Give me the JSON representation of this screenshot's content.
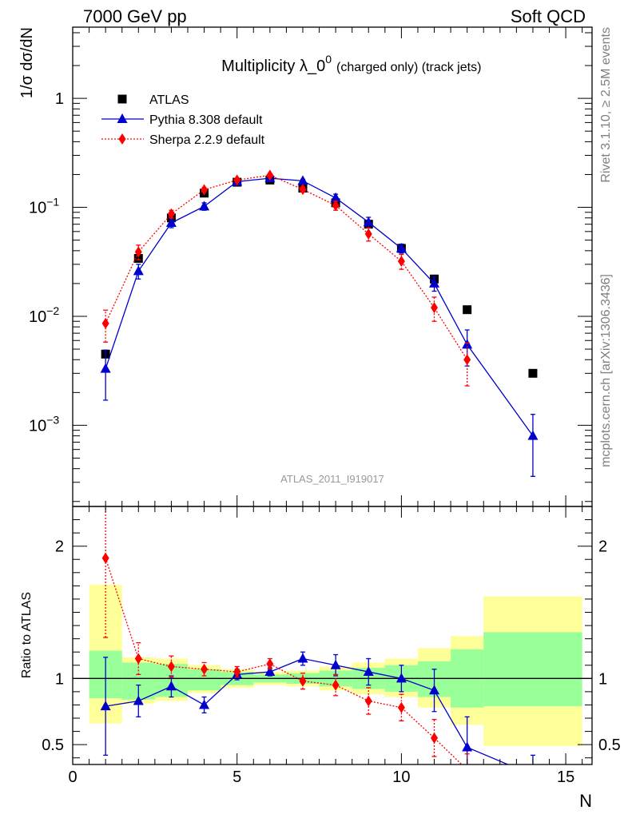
{
  "header": {
    "left": "7000 GeV pp",
    "right": "Soft QCD"
  },
  "side_labels": {
    "rivet": "Rivet 3.1.10, ≥ 2.5M events",
    "mcplots": "mcplots.cern.ch [arXiv:1306.3436]"
  },
  "chart_data": [
    {
      "type": "scatter",
      "title_main": "Multiplicity λ_0",
      "title_sup": "0",
      "title_suffix": "(charged only) (track jets)",
      "ylabel": "1/σ dσ/dN",
      "yscale": "log",
      "ylim": [
        0.00018,
        4.5
      ],
      "xlim": [
        0,
        15.8
      ],
      "analysis_tag": "ATLAS_2011_I919017",
      "legend_position": "top-left",
      "y_ticks": [
        {
          "value": 1,
          "base": "1",
          "exp": ""
        },
        {
          "value": 0.1,
          "base": "10",
          "exp": "−1"
        },
        {
          "value": 0.01,
          "base": "10",
          "exp": "−2"
        },
        {
          "value": 0.001,
          "base": "10",
          "exp": "−3"
        }
      ],
      "series": [
        {
          "name": "ATLAS",
          "style": "data",
          "color": "#000000",
          "x": [
            1,
            2,
            3,
            4,
            5,
            6,
            7,
            8,
            9,
            10,
            11,
            12,
            14
          ],
          "y": [
            0.0045,
            0.034,
            0.08,
            0.135,
            0.17,
            0.178,
            0.15,
            0.11,
            0.07,
            0.042,
            0.022,
            0.0115,
            0.003
          ]
        },
        {
          "name": "Pythia 8.308 default",
          "style": "solid",
          "marker": "triangle",
          "color": "#0000cc",
          "x": [
            1,
            2,
            3,
            4,
            5,
            6,
            7,
            8,
            9,
            10,
            11,
            12,
            14
          ],
          "y": [
            0.0033,
            0.026,
            0.072,
            0.102,
            0.172,
            0.185,
            0.175,
            0.122,
            0.073,
            0.042,
            0.02,
            0.0055,
            0.0008
          ],
          "err": [
            0.0016,
            0.004,
            0.007,
            0.008,
            0.006,
            0.005,
            0.006,
            0.01,
            0.008,
            0.004,
            0.003,
            0.002,
            0.00046
          ]
        },
        {
          "name": "Sherpa 2.2.9 default",
          "style": "dotted",
          "marker": "diamond",
          "color": "#ff0000",
          "x": [
            1,
            2,
            3,
            4,
            5,
            6,
            7,
            8,
            9,
            10,
            11,
            12
          ],
          "y": [
            0.0086,
            0.039,
            0.087,
            0.145,
            0.178,
            0.197,
            0.146,
            0.104,
            0.057,
            0.032,
            0.012,
            0.004
          ],
          "err": [
            0.0028,
            0.006,
            0.007,
            0.006,
            0.005,
            0.006,
            0.008,
            0.01,
            0.008,
            0.005,
            0.003,
            0.0017
          ]
        }
      ]
    },
    {
      "type": "scatter",
      "ylabel": "Ratio to ATLAS",
      "xlabel": "N",
      "ylim": [
        0.35,
        2.3
      ],
      "xlim": [
        0,
        15.8
      ],
      "y_ticks": [
        {
          "value": 0.5,
          "label": "0.5"
        },
        {
          "value": 1,
          "label": "1"
        },
        {
          "value": 2,
          "label": "2"
        }
      ],
      "x_ticks": [
        {
          "value": 0,
          "label": "0"
        },
        {
          "value": 5,
          "label": "5"
        },
        {
          "value": 10,
          "label": "10"
        },
        {
          "value": 15,
          "label": "15"
        }
      ],
      "uncertainty_bands": [
        {
          "x0": 0.5,
          "x1": 1.5,
          "yellow": [
            0.66,
            1.71
          ],
          "green": [
            0.85,
            1.21
          ]
        },
        {
          "x0": 1.5,
          "x1": 2.5,
          "yellow": [
            0.81,
            1.16
          ],
          "green": [
            0.84,
            1.12
          ]
        },
        {
          "x0": 2.5,
          "x1": 3.5,
          "yellow": [
            0.83,
            1.15
          ],
          "green": [
            0.86,
            1.11
          ]
        },
        {
          "x0": 3.5,
          "x1": 4.5,
          "yellow": [
            0.89,
            1.1
          ],
          "green": [
            0.91,
            1.07
          ]
        },
        {
          "x0": 4.5,
          "x1": 5.5,
          "yellow": [
            0.93,
            1.07
          ],
          "green": [
            0.95,
            1.05
          ]
        },
        {
          "x0": 5.5,
          "x1": 6.5,
          "yellow": [
            0.95,
            1.05
          ],
          "green": [
            0.97,
            1.03
          ]
        },
        {
          "x0": 6.5,
          "x1": 7.5,
          "yellow": [
            0.94,
            1.06
          ],
          "green": [
            0.96,
            1.04
          ]
        },
        {
          "x0": 7.5,
          "x1": 8.5,
          "yellow": [
            0.91,
            1.09
          ],
          "green": [
            0.94,
            1.06
          ]
        },
        {
          "x0": 8.5,
          "x1": 9.5,
          "yellow": [
            0.88,
            1.12
          ],
          "green": [
            0.92,
            1.08
          ]
        },
        {
          "x0": 9.5,
          "x1": 10.5,
          "yellow": [
            0.86,
            1.15
          ],
          "green": [
            0.9,
            1.1
          ]
        },
        {
          "x0": 10.5,
          "x1": 11.5,
          "yellow": [
            0.78,
            1.23
          ],
          "green": [
            0.86,
            1.13
          ]
        },
        {
          "x0": 11.5,
          "x1": 12.5,
          "yellow": [
            0.65,
            1.32
          ],
          "green": [
            0.78,
            1.22
          ]
        },
        {
          "x0": 12.5,
          "x1": 15.5,
          "yellow": [
            0.49,
            1.62
          ],
          "green": [
            0.79,
            1.35
          ]
        }
      ],
      "series": [
        {
          "name": "Pythia 8.308 default",
          "color": "#0000cc",
          "style": "solid",
          "marker": "triangle",
          "x": [
            1,
            2,
            3,
            4,
            5,
            6,
            7,
            8,
            9,
            10,
            11,
            12,
            14
          ],
          "y": [
            0.79,
            0.83,
            0.94,
            0.8,
            1.03,
            1.05,
            1.15,
            1.1,
            1.05,
            1.0,
            0.91,
            0.48,
            0.27
          ],
          "err": [
            0.37,
            0.12,
            0.08,
            0.06,
            0.04,
            0.03,
            0.05,
            0.08,
            0.1,
            0.1,
            0.16,
            0.23,
            0.15
          ]
        },
        {
          "name": "Sherpa 2.2.9 default",
          "color": "#ff0000",
          "style": "dotted",
          "marker": "diamond",
          "x": [
            1,
            2,
            3,
            4,
            5,
            6,
            7,
            8,
            9,
            10,
            11,
            12
          ],
          "y": [
            1.91,
            1.15,
            1.09,
            1.07,
            1.05,
            1.11,
            0.98,
            0.95,
            0.83,
            0.78,
            0.55,
            0.31
          ],
          "err": [
            0.6,
            0.12,
            0.08,
            0.05,
            0.04,
            0.04,
            0.06,
            0.08,
            0.1,
            0.1,
            0.14,
            0.12
          ]
        }
      ]
    }
  ]
}
